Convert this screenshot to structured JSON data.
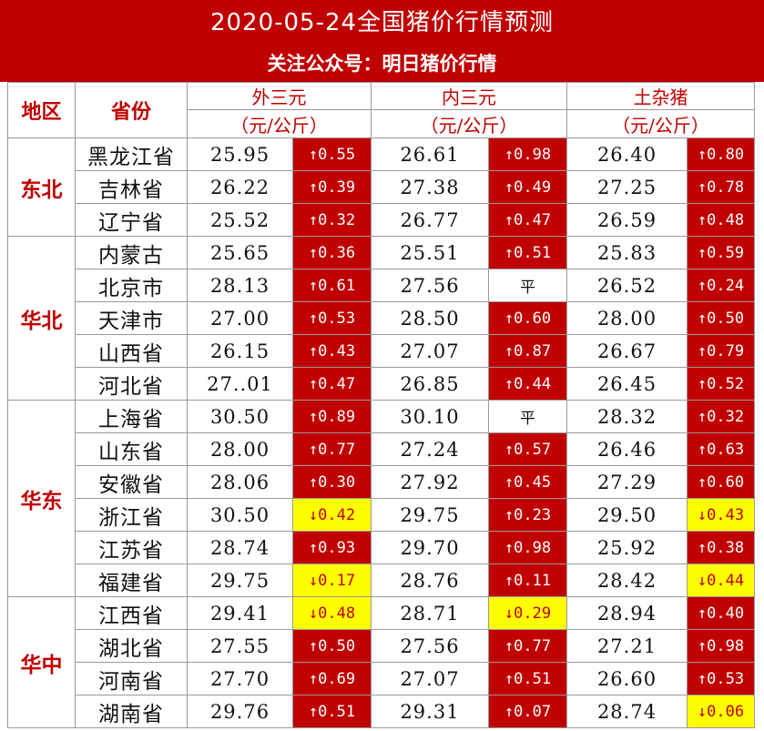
{
  "title": "2020-05-24全国猪价行情预测",
  "subtitle": "关注公众号：明日猪价行情",
  "headers": {
    "region": "地区",
    "province": "省份",
    "col1": "外三元",
    "col2": "内三元",
    "col3": "土杂猪",
    "unit": "（元/公斤）"
  },
  "colors": {
    "up": "#c00000",
    "down": "#ffff00",
    "header": "#c00000"
  },
  "regions": [
    {
      "name": "东北",
      "rows": [
        {
          "province": "黑龙江省",
          "p1": "25.95",
          "c1": "↑0.55",
          "d1": "up",
          "p2": "26.61",
          "c2": "↑0.98",
          "d2": "up",
          "p3": "26.40",
          "c3": "↑0.80",
          "d3": "up"
        },
        {
          "province": "吉林省",
          "p1": "26.22",
          "c1": "↑0.39",
          "d1": "up",
          "p2": "27.38",
          "c2": "↑0.49",
          "d2": "up",
          "p3": "27.25",
          "c3": "↑0.78",
          "d3": "up"
        },
        {
          "province": "辽宁省",
          "p1": "25.52",
          "c1": "↑0.32",
          "d1": "up",
          "p2": "26.77",
          "c2": "↑0.47",
          "d2": "up",
          "p3": "26.59",
          "c3": "↑0.48",
          "d3": "up"
        }
      ]
    },
    {
      "name": "华北",
      "rows": [
        {
          "province": "内蒙古",
          "p1": "25.65",
          "c1": "↑0.36",
          "d1": "up",
          "p2": "25.51",
          "c2": "↑0.51",
          "d2": "up",
          "p3": "25.83",
          "c3": "↑0.59",
          "d3": "up"
        },
        {
          "province": "北京市",
          "p1": "28.13",
          "c1": "↑0.61",
          "d1": "up",
          "p2": "27.56",
          "c2": "平",
          "d2": "flat",
          "p3": "26.52",
          "c3": "↑0.24",
          "d3": "up"
        },
        {
          "province": "天津市",
          "p1": "27.00",
          "c1": "↑0.53",
          "d1": "up",
          "p2": "28.50",
          "c2": "↑0.60",
          "d2": "up",
          "p3": "28.00",
          "c3": "↑0.50",
          "d3": "up"
        },
        {
          "province": "山西省",
          "p1": "26.15",
          "c1": "↑0.43",
          "d1": "up",
          "p2": "27.07",
          "c2": "↑0.87",
          "d2": "up",
          "p3": "26.67",
          "c3": "↑0.79",
          "d3": "up"
        },
        {
          "province": "河北省",
          "p1": "27..01",
          "c1": "↑0.47",
          "d1": "up",
          "p2": "26.85",
          "c2": "↑0.44",
          "d2": "up",
          "p3": "26.45",
          "c3": "↑0.52",
          "d3": "up"
        }
      ]
    },
    {
      "name": "华东",
      "rows": [
        {
          "province": "上海省",
          "p1": "30.50",
          "c1": "↑0.89",
          "d1": "up",
          "p2": "30.10",
          "c2": "平",
          "d2": "flat",
          "p3": "28.32",
          "c3": "↑0.32",
          "d3": "up"
        },
        {
          "province": "山东省",
          "p1": "28.00",
          "c1": "↑0.77",
          "d1": "up",
          "p2": "27.24",
          "c2": "↑0.57",
          "d2": "up",
          "p3": "26.46",
          "c3": "↑0.63",
          "d3": "up"
        },
        {
          "province": "安徽省",
          "p1": "28.06",
          "c1": "↑0.30",
          "d1": "up",
          "p2": "27.92",
          "c2": "↑0.45",
          "d2": "up",
          "p3": "27.29",
          "c3": "↑0.60",
          "d3": "up"
        },
        {
          "province": "浙江省",
          "p1": "30.50",
          "c1": "↓0.42",
          "d1": "down",
          "p2": "29.75",
          "c2": "↑0.23",
          "d2": "up",
          "p3": "29.50",
          "c3": "↓0.43",
          "d3": "down"
        },
        {
          "province": "江苏省",
          "p1": "28.74",
          "c1": "↑0.93",
          "d1": "up",
          "p2": "29.70",
          "c2": "↑0.98",
          "d2": "up",
          "p3": "25.92",
          "c3": "↑0.38",
          "d3": "up"
        },
        {
          "province": "福建省",
          "p1": "29.75",
          "c1": "↓0.17",
          "d1": "down",
          "p2": "28.76",
          "c2": "↑0.11",
          "d2": "up",
          "p3": "28.42",
          "c3": "↓0.44",
          "d3": "down"
        }
      ]
    },
    {
      "name": "华中",
      "rows": [
        {
          "province": "江西省",
          "p1": "29.41",
          "c1": "↓0.48",
          "d1": "down",
          "p2": "28.71",
          "c2": "↓0.29",
          "d2": "down",
          "p3": "28.94",
          "c3": "↑0.40",
          "d3": "up"
        },
        {
          "province": "湖北省",
          "p1": "27.55",
          "c1": "↑0.50",
          "d1": "up",
          "p2": "27.56",
          "c2": "↑0.77",
          "d2": "up",
          "p3": "27.21",
          "c3": "↑0.98",
          "d3": "up"
        },
        {
          "province": "河南省",
          "p1": "27.70",
          "c1": "↑0.69",
          "d1": "up",
          "p2": "27.07",
          "c2": "↑0.51",
          "d2": "up",
          "p3": "26.60",
          "c3": "↑0.53",
          "d3": "up"
        },
        {
          "province": "湖南省",
          "p1": "29.76",
          "c1": "↑0.51",
          "d1": "up",
          "p2": "29.31",
          "c2": "↑0.07",
          "d2": "up",
          "p3": "28.74",
          "c3": "↓0.06",
          "d3": "down"
        }
      ]
    }
  ]
}
